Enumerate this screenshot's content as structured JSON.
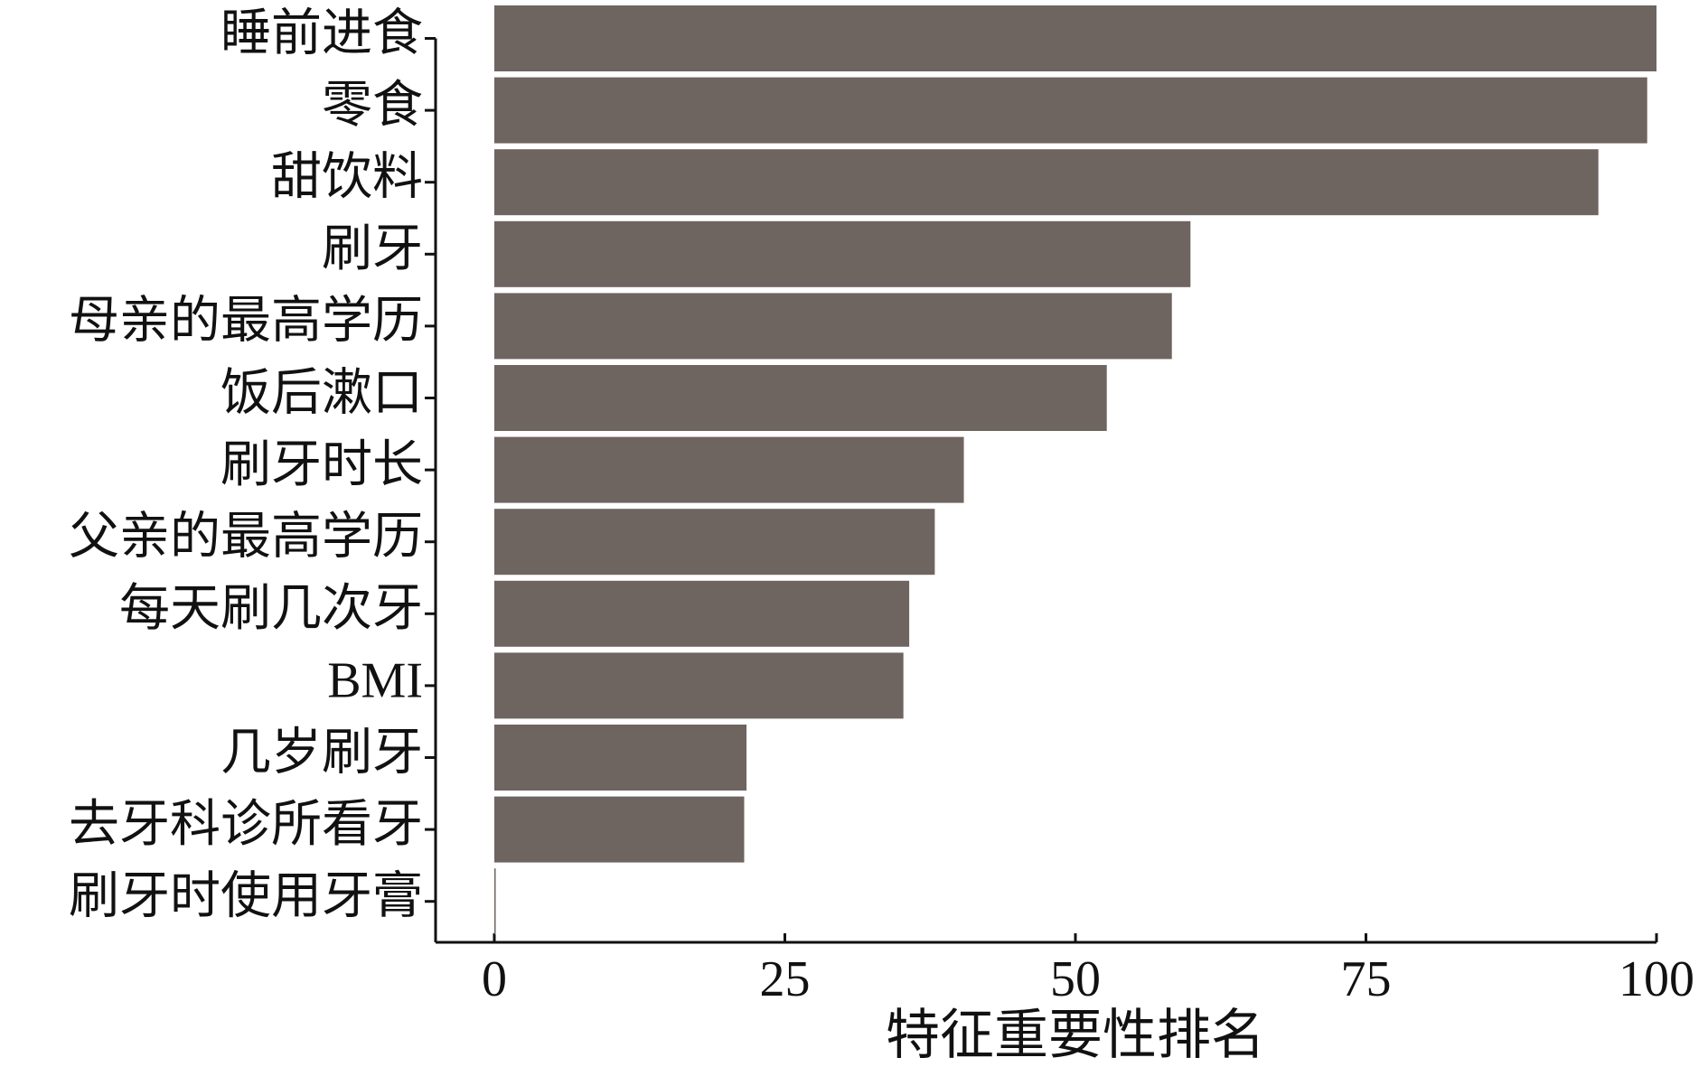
{
  "chart_data": {
    "type": "barh",
    "xlabel": "特征重要性排名",
    "categories": [
      "睡前进食",
      "零食",
      "甜饮料",
      "刷牙",
      "母亲的最高学历",
      "饭后漱口",
      "刷牙时长",
      "父亲的最高学历",
      "每天刷几次牙",
      "BMI",
      "几岁刷牙",
      "去牙科诊所看牙",
      "刷牙时使用牙膏"
    ],
    "values": [
      100,
      99.2,
      95.0,
      59.9,
      58.3,
      52.7,
      40.4,
      37.9,
      35.7,
      35.2,
      21.7,
      21.5,
      0
    ],
    "color": "#6e6460",
    "xlim": [
      0,
      100
    ],
    "xticks": [
      0,
      25,
      50,
      75,
      100
    ]
  }
}
